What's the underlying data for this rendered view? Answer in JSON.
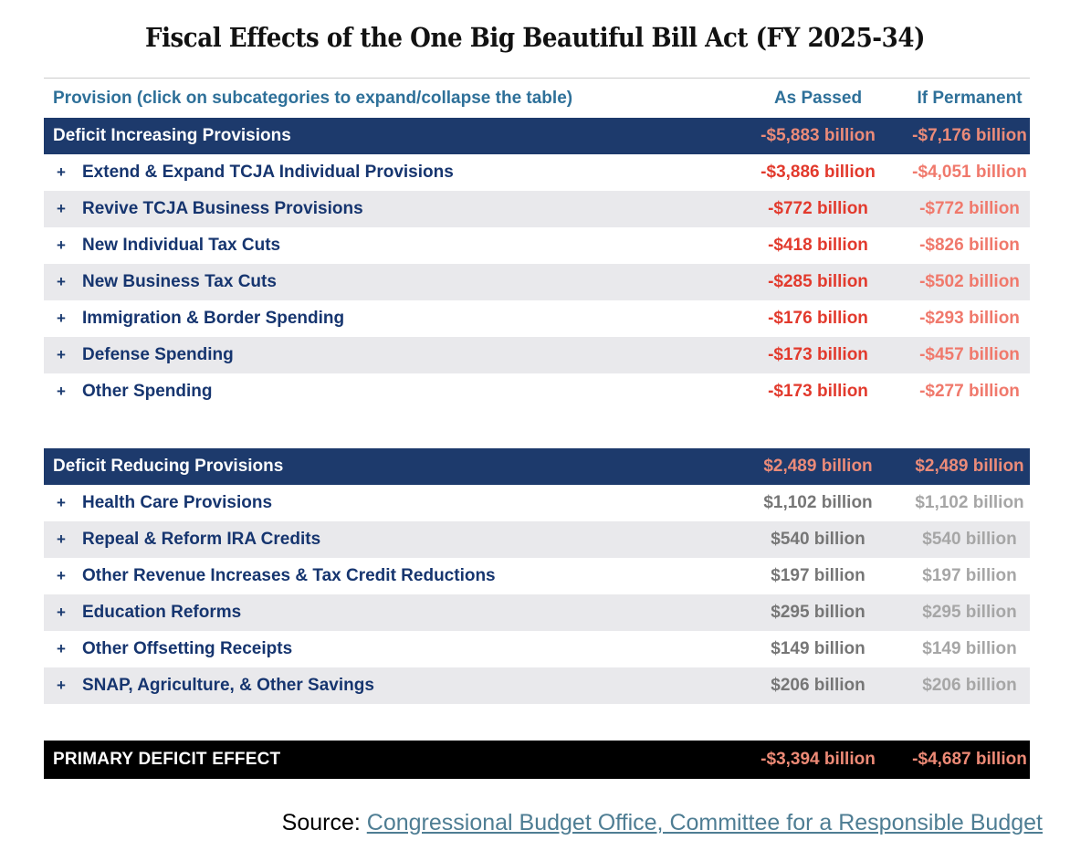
{
  "title": "Fiscal Effects of the One Big Beautiful Bill Act (FY 2025-34)",
  "table": {
    "header": {
      "provision": "Provision (click on subcategories to expand/collapse the table)",
      "as_passed": "As Passed",
      "if_permanent": "If Permanent"
    },
    "sections": [
      {
        "label": "Deficit Increasing Provisions",
        "as_passed": "-$5,883 billion",
        "if_permanent": "-$7,176 billion",
        "rows": [
          {
            "expand": "+",
            "label": "Extend & Expand TCJA Individual Provisions",
            "as_passed": "-$3,886 billion",
            "if_permanent": "-$4,051 billion"
          },
          {
            "expand": "+",
            "label": "Revive TCJA Business Provisions",
            "as_passed": "-$772 billion",
            "if_permanent": "-$772 billion"
          },
          {
            "expand": "+",
            "label": "New Individual Tax Cuts",
            "as_passed": "-$418 billion",
            "if_permanent": "-$826 billion"
          },
          {
            "expand": "+",
            "label": "New Business Tax Cuts",
            "as_passed": "-$285 billion",
            "if_permanent": "-$502 billion"
          },
          {
            "expand": "+",
            "label": "Immigration & Border Spending",
            "as_passed": "-$176 billion",
            "if_permanent": "-$293 billion"
          },
          {
            "expand": "+",
            "label": "Defense Spending",
            "as_passed": "-$173 billion",
            "if_permanent": "-$457 billion"
          },
          {
            "expand": "+",
            "label": "Other Spending",
            "as_passed": "-$173 billion",
            "if_permanent": "-$277 billion"
          }
        ]
      },
      {
        "label": "Deficit Reducing Provisions",
        "as_passed": "$2,489 billion",
        "if_permanent": "$2,489 billion",
        "rows": [
          {
            "expand": "+",
            "label": "Health Care Provisions",
            "as_passed": "$1,102 billion",
            "if_permanent": "$1,102 billion"
          },
          {
            "expand": "+",
            "label": "Repeal & Reform IRA Credits",
            "as_passed": "$540 billion",
            "if_permanent": "$540 billion"
          },
          {
            "expand": "+",
            "label": "Other Revenue Increases & Tax Credit Reductions",
            "as_passed": "$197 billion",
            "if_permanent": "$197 billion"
          },
          {
            "expand": "+",
            "label": "Education Reforms",
            "as_passed": "$295 billion",
            "if_permanent": "$295 billion"
          },
          {
            "expand": "+",
            "label": "Other Offsetting Receipts",
            "as_passed": "$149 billion",
            "if_permanent": "$149 billion"
          },
          {
            "expand": "+",
            "label": "SNAP, Agriculture, & Other Savings",
            "as_passed": "$206 billion",
            "if_permanent": "$206 billion"
          }
        ]
      }
    ],
    "total": {
      "label": "PRIMARY DEFICIT EFFECT",
      "as_passed": "-$3,394 billion",
      "if_permanent": "-$4,687 billion"
    }
  },
  "footer": {
    "source_label": "Source: ",
    "source_link": "Congressional Budget Office, Committee for a Responsible Budget"
  },
  "colors": {
    "navy_bar": "#1d3a6c",
    "label_navy": "#16356f",
    "header_teal": "#2e7099",
    "negative_as_passed": "#e23a2d",
    "negative_if_permanent": "#f0796c",
    "positive_as_passed": "#767676",
    "positive_if_permanent": "#a6a6a6",
    "salmon_on_dark": "#eb8b79",
    "stripe_gray": "#e9e9ec",
    "total_black": "#000000",
    "link_teal": "#4e7d93"
  },
  "chart_data": {
    "type": "table",
    "title": "Fiscal Effects of the One Big Beautiful Bill Act (FY 2025-34)",
    "columns": [
      "Provision",
      "As Passed ($ billion)",
      "If Permanent ($ billion)"
    ],
    "rows": [
      [
        "Deficit Increasing Provisions",
        -5883,
        -7176
      ],
      [
        "Extend & Expand TCJA Individual Provisions",
        -3886,
        -4051
      ],
      [
        "Revive TCJA Business Provisions",
        -772,
        -772
      ],
      [
        "New Individual Tax Cuts",
        -418,
        -826
      ],
      [
        "New Business Tax Cuts",
        -285,
        -502
      ],
      [
        "Immigration & Border Spending",
        -176,
        -293
      ],
      [
        "Defense Spending",
        -173,
        -457
      ],
      [
        "Other Spending",
        -173,
        -277
      ],
      [
        "Deficit Reducing Provisions",
        2489,
        2489
      ],
      [
        "Health Care Provisions",
        1102,
        1102
      ],
      [
        "Repeal & Reform IRA Credits",
        540,
        540
      ],
      [
        "Other Revenue Increases & Tax Credit Reductions",
        197,
        197
      ],
      [
        "Education Reforms",
        295,
        295
      ],
      [
        "Other Offsetting Receipts",
        149,
        149
      ],
      [
        "SNAP, Agriculture, & Other Savings",
        206,
        206
      ],
      [
        "PRIMARY DEFICIT EFFECT",
        -3394,
        -4687
      ]
    ]
  }
}
